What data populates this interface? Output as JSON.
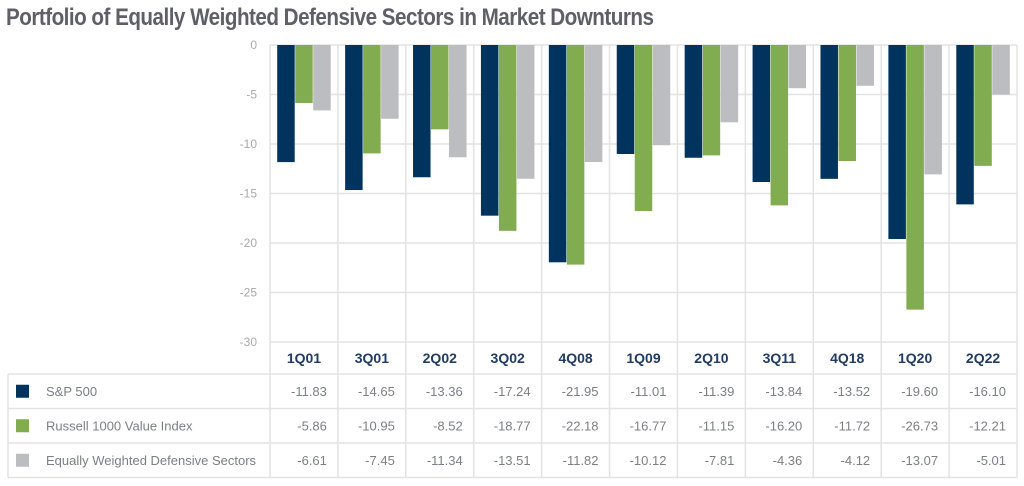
{
  "chart_data": {
    "type": "bar",
    "title": "Portfolio of Equally Weighted Defensive Sectors in Market Downturns",
    "xlabel": "",
    "ylabel": "",
    "ylim": [
      -30,
      0
    ],
    "yticks": [
      0,
      -5,
      -10,
      -15,
      -20,
      -25,
      -30
    ],
    "grid": true,
    "legend": "bottom data table",
    "categories": [
      "1Q01",
      "3Q01",
      "2Q02",
      "3Q02",
      "4Q08",
      "1Q09",
      "2Q10",
      "3Q11",
      "4Q18",
      "1Q20",
      "2Q22"
    ],
    "series": [
      {
        "name": "S&P 500",
        "color": "#00345e",
        "values": [
          -11.83,
          -14.65,
          -13.36,
          -17.24,
          -21.95,
          -11.01,
          -11.39,
          -13.84,
          -13.52,
          -19.6,
          -16.1
        ],
        "labels": [
          "-11.83",
          "-14.65",
          "-13.36",
          "-17.24",
          "-21.95",
          "-11.01",
          "-11.39",
          "-13.84",
          "-13.52",
          "-19.60",
          "-16.10"
        ]
      },
      {
        "name": "Russell 1000 Value Index",
        "color": "#82ac50",
        "values": [
          -5.86,
          -10.95,
          -8.52,
          -18.77,
          -22.18,
          -16.77,
          -11.15,
          -16.2,
          -11.72,
          -26.73,
          -12.21
        ],
        "labels": [
          "-5.86",
          "-10.95",
          "-8.52",
          "-18.77",
          "-22.18",
          "-16.77",
          "-11.15",
          "-16.20",
          "-11.72",
          "-26.73",
          "-12.21"
        ]
      },
      {
        "name": "Equally Weighted Defensive Sectors",
        "color": "#bcbdc1",
        "values": [
          -6.61,
          -7.45,
          -11.34,
          -13.51,
          -11.82,
          -10.12,
          -7.81,
          -4.36,
          -4.12,
          -13.07,
          -5.01
        ],
        "labels": [
          "-6.61",
          "-7.45",
          "-11.34",
          "-13.51",
          "-11.82",
          "-10.12",
          "-7.81",
          "-4.36",
          "-4.12",
          "-13.07",
          "-5.01"
        ]
      }
    ]
  }
}
